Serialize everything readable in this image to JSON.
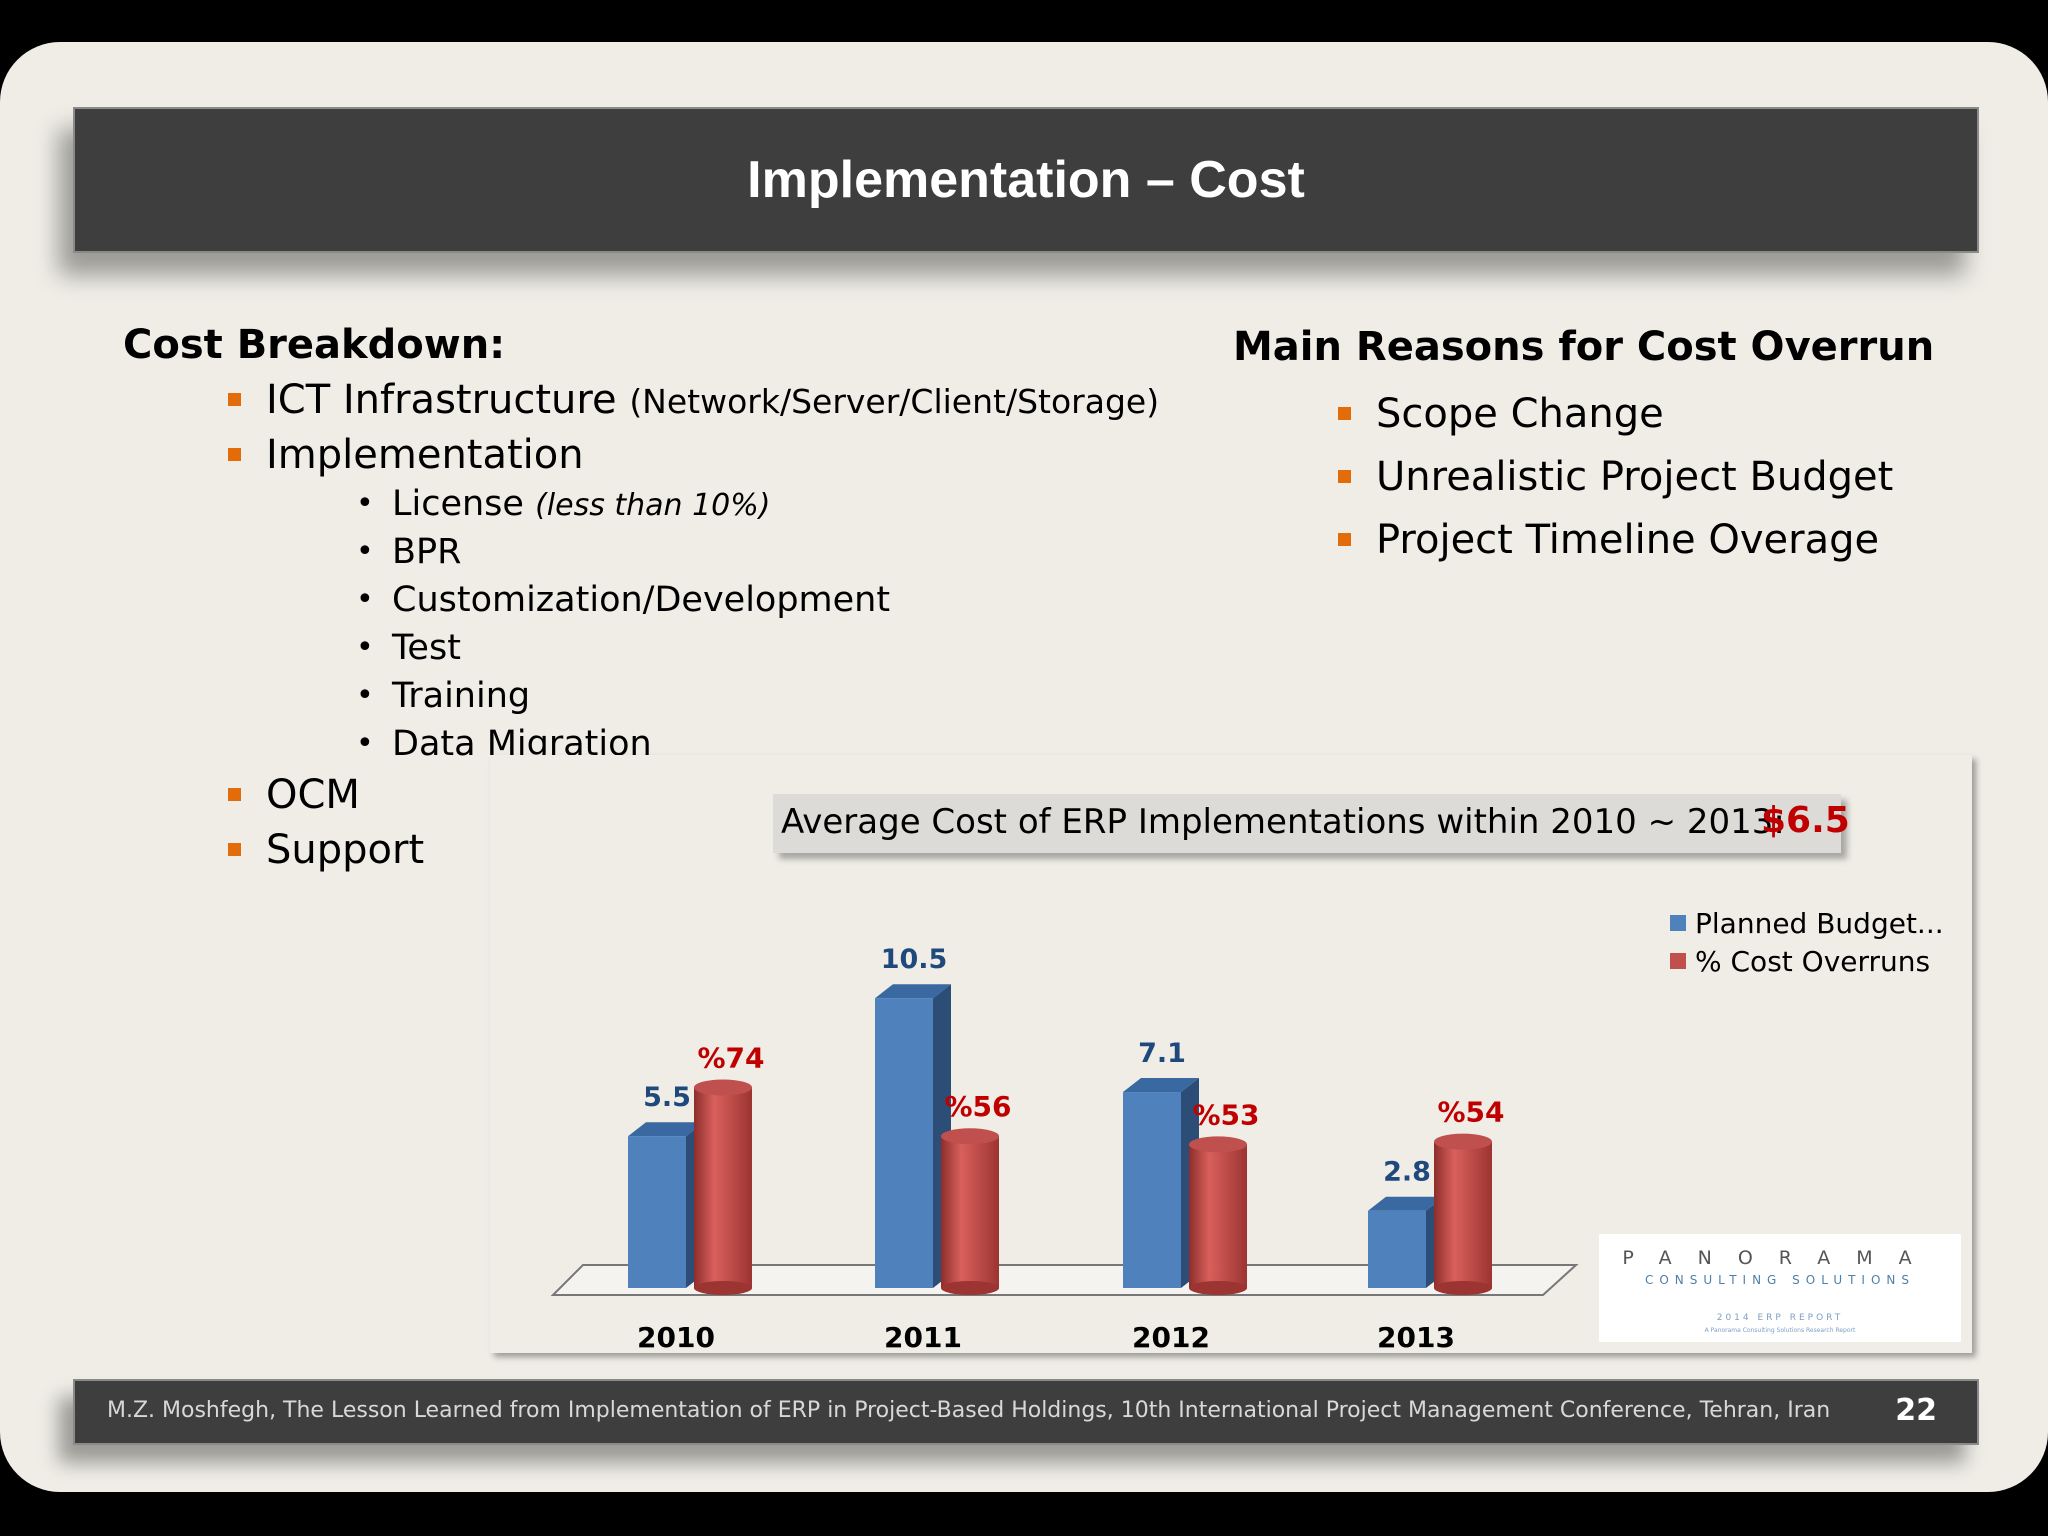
{
  "slide": {
    "title": "Implementation – Cost",
    "cost_breakdown_heading": "Cost Breakdown:",
    "cost_items": [
      {
        "label": "ICT Infrastructure",
        "detail": "(Network/Server/Client/Storage)"
      },
      {
        "label": "Implementation",
        "detail": ""
      },
      {
        "label": "OCM",
        "detail": ""
      },
      {
        "label": "Support",
        "detail": ""
      }
    ],
    "implementation_subitems": [
      {
        "label": "License",
        "detail": "(less than 10%)"
      },
      {
        "label": "BPR",
        "detail": ""
      },
      {
        "label": "Customization/Development",
        "detail": ""
      },
      {
        "label": "Test",
        "detail": ""
      },
      {
        "label": "Training",
        "detail": ""
      },
      {
        "label": "Data Migration",
        "detail": ""
      }
    ],
    "reasons_heading": "Main Reasons for Cost Overrun",
    "reasons": [
      "Scope Change",
      "Unrealistic Project Budget",
      "Project Timeline Overage"
    ],
    "average_label": "Average Cost of ERP Implementations within 2010 ~ 2013:",
    "average_value": "$6.5",
    "footer_text": "M.Z. Moshfegh, The Lesson Learned from Implementation of ERP in Project-Based Holdings, 10th International Project Management Conference, Tehran, Iran",
    "page_number": "22",
    "logo": {
      "line1": "PANORAMA",
      "line2": "CONSULTING SOLUTIONS",
      "line3": "2014 ERP REPORT",
      "line4": "A Panorama Consulting Solutions Research Report"
    }
  },
  "colors": {
    "accent_bullet": "#e36c0a",
    "planned_bar": "#4f81bd",
    "overrun_bar": "#c0504d",
    "highlight_red": "#c00000",
    "label_blue": "#1f497d"
  },
  "chart_data": {
    "type": "bar",
    "categories": [
      "2010",
      "2011",
      "2012",
      "2013"
    ],
    "series": [
      {
        "name": "Planned Budget...",
        "values": [
          5.5,
          10.5,
          7.1,
          2.8
        ],
        "labels": [
          "5.5",
          "10.5",
          "7.1",
          "2.8"
        ]
      },
      {
        "name": "% Cost Overruns",
        "values": [
          74,
          56,
          53,
          54
        ],
        "labels": [
          "%74",
          "%56",
          "%53",
          "%54"
        ]
      }
    ],
    "legend_position": "top-right",
    "title": "",
    "xlabel": "",
    "ylabel": ""
  }
}
